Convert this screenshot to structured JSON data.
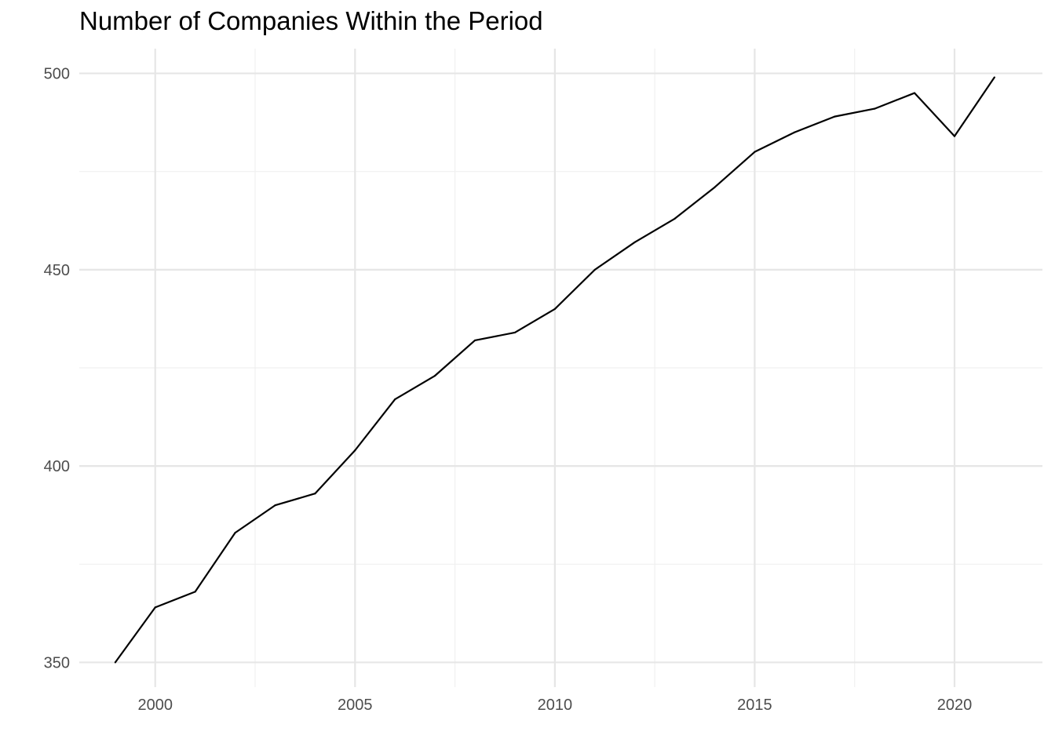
{
  "chart_data": {
    "type": "line",
    "title": "Number of Companies Within the Period",
    "xlabel": "",
    "ylabel": "",
    "x": [
      1999,
      2000,
      2001,
      2002,
      2003,
      2004,
      2005,
      2006,
      2007,
      2008,
      2009,
      2010,
      2011,
      2012,
      2013,
      2014,
      2015,
      2016,
      2017,
      2018,
      2019,
      2020,
      2021
    ],
    "series": [
      {
        "values": [
          350,
          364,
          368,
          383,
          390,
          393,
          404,
          417,
          423,
          432,
          434,
          440,
          450,
          457,
          463,
          471,
          480,
          485,
          489,
          491,
          495,
          484,
          499
        ],
        "color": "#000000"
      }
    ],
    "xticks": [
      "2000",
      "2005",
      "2010",
      "2015",
      "2020"
    ],
    "yticks": [
      "350",
      "400",
      "450",
      "500"
    ],
    "xlim": [
      1998.1,
      2022.2
    ],
    "ylim": [
      343.7,
      506.3
    ],
    "grid": true,
    "legend": "none",
    "colors": {
      "background": "#ffffff",
      "grid_major": "#e6e6e6",
      "grid_minor": "#f0f0f0",
      "tick_text": "#4d4d4d",
      "line": "#000000"
    }
  }
}
